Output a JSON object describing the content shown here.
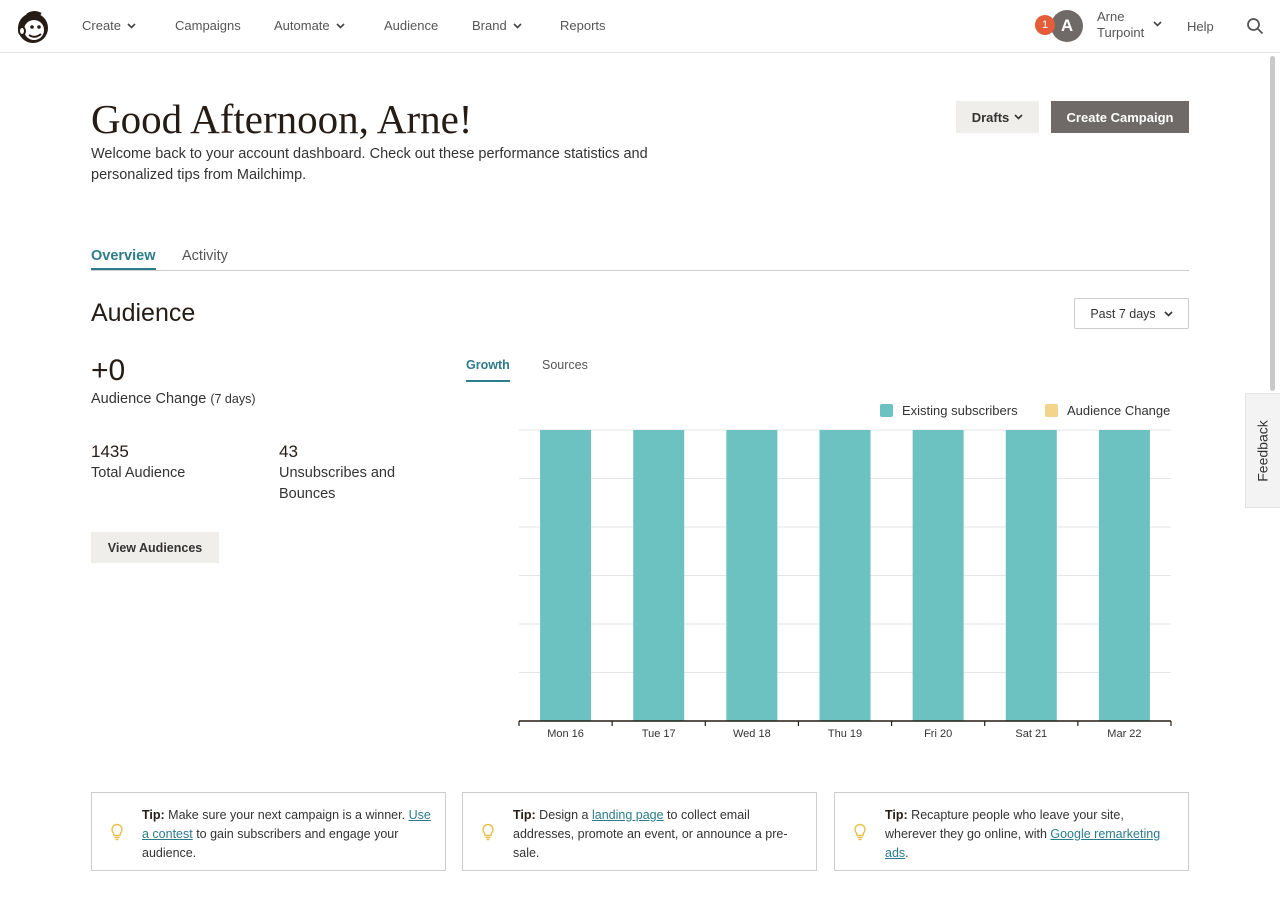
{
  "nav": {
    "items": [
      {
        "label": "Create",
        "has_dropdown": true
      },
      {
        "label": "Campaigns",
        "has_dropdown": false
      },
      {
        "label": "Automate",
        "has_dropdown": true
      },
      {
        "label": "Audience",
        "has_dropdown": false
      },
      {
        "label": "Brand",
        "has_dropdown": true
      },
      {
        "label": "Reports",
        "has_dropdown": false
      }
    ],
    "notification_count": "1",
    "avatar_initial": "A",
    "user_first": "Arne",
    "user_last": "Turpoint",
    "help_label": "Help",
    "logo_icon": "mailchimp-freddie-logo",
    "search_icon": "search-icon"
  },
  "header": {
    "greeting": "Good Afternoon, Arne!",
    "welcome": "Welcome back to your account dashboard. Check out these performance statistics and personalized tips from Mailchimp.",
    "drafts_label": "Drafts",
    "create_label": "Create Campaign"
  },
  "tabs": [
    {
      "label": "Overview",
      "active": true
    },
    {
      "label": "Activity",
      "active": false
    }
  ],
  "audience": {
    "title": "Audience",
    "range_label": "Past 7 days",
    "change_value": "+0",
    "change_label": "Audience Change",
    "change_period": "(7 days)",
    "total_value": "1435",
    "total_label": "Total Audience",
    "unsub_value": "43",
    "unsub_label": "Unsubscribes and Bounces",
    "view_button": "View Audiences"
  },
  "chart_tabs": [
    {
      "label": "Growth",
      "active": true
    },
    {
      "label": "Sources",
      "active": false
    }
  ],
  "legend": [
    {
      "label": "Existing subscribers",
      "color": "#6cc2c1"
    },
    {
      "label": "Audience Change",
      "color": "#f2d48c"
    }
  ],
  "chart_data": {
    "type": "bar",
    "categories": [
      "Mon 16",
      "Tue 17",
      "Wed 18",
      "Thu 19",
      "Fri 20",
      "Sat 21",
      "Mar 22"
    ],
    "series": [
      {
        "name": "Existing subscribers",
        "values": [
          1435,
          1435,
          1435,
          1435,
          1435,
          1435,
          1435
        ],
        "color": "#6cc2c1"
      },
      {
        "name": "Audience Change",
        "values": [
          0,
          0,
          0,
          0,
          0,
          0,
          0
        ],
        "color": "#f2d48c"
      }
    ],
    "ylim": [
      0,
      1435
    ],
    "grid": true,
    "legend_position": "top-right",
    "title": "",
    "xlabel": "",
    "ylabel": ""
  },
  "tips": [
    {
      "prefix": "Tip:",
      "before": " Make sure your next campaign is a winner. ",
      "link": "Use a contest",
      "after": " to gain subscribers and engage your audience."
    },
    {
      "prefix": "Tip:",
      "before": " Design a ",
      "link": "landing page",
      "after": " to collect email addresses, promote an event, or announce a pre-sale."
    },
    {
      "prefix": "Tip:",
      "before": " Recapture people who leave your site, wherever they go online, with ",
      "link": "Google remarketing ads",
      "after": "."
    }
  ],
  "feedback_label": "Feedback"
}
